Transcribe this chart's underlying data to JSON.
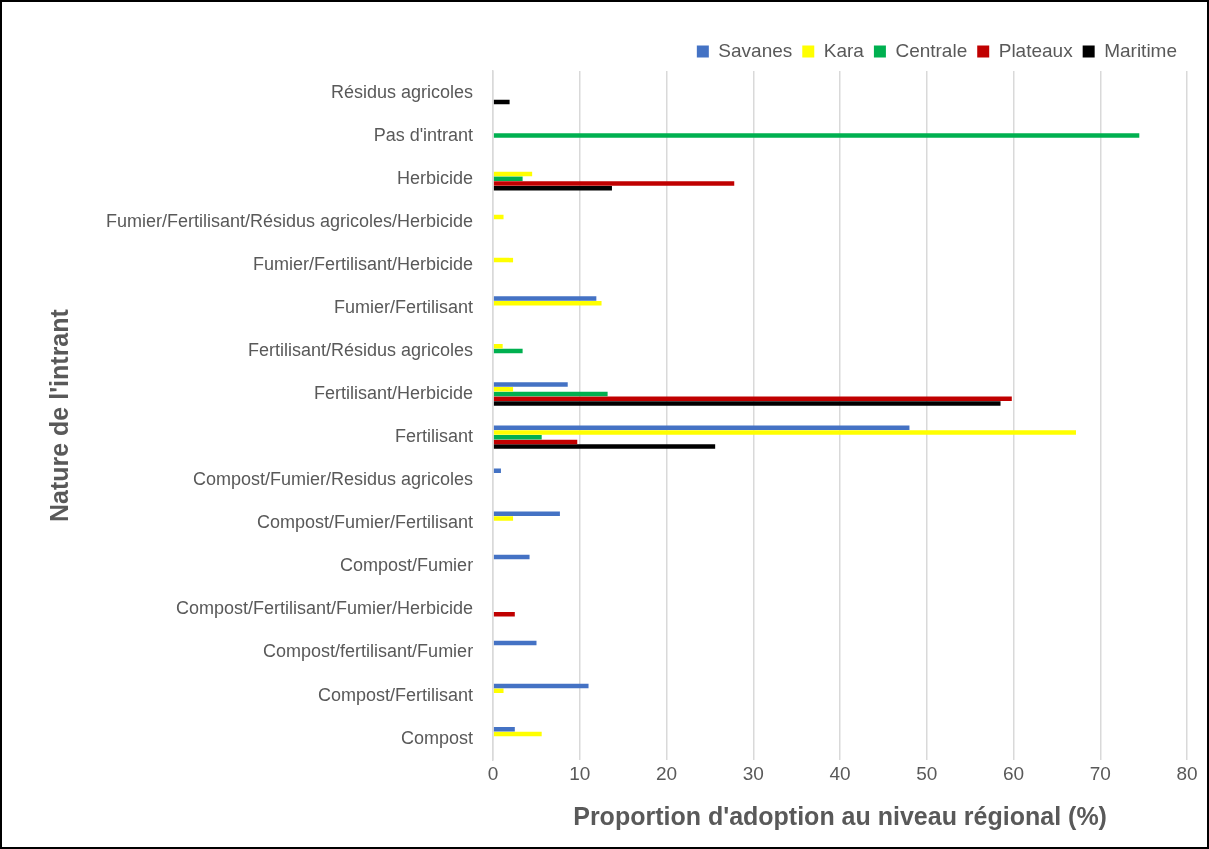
{
  "chart_data": {
    "type": "bar",
    "orientation": "horizontal",
    "xlabel": "Proportion d'adoption au niveau régional (%)",
    "ylabel": "Nature de l'intrant",
    "categories": [
      "Résidus agricoles",
      "Pas d'intrant",
      "Herbicide",
      "Fumier/Fertilisant/Résidus agricoles/Herbicide",
      "Fumier/Fertilisant/Herbicide",
      "Fumier/Fertilisant",
      "Fertilisant/Résidus agricoles",
      "Fertilisant/Herbicide",
      "Fertilisant",
      "Compost/Fumier/Residus agricoles",
      "Compost/Fumier/Fertilisant",
      "Compost/Fumier",
      "Compost/Fertilisant/Fumier/Herbicide",
      "Compost/fertilisant/Fumier",
      "Compost/Fertilisant",
      "Compost"
    ],
    "series": [
      {
        "name": "Savanes",
        "color": "#4472c4",
        "values": [
          null,
          null,
          null,
          null,
          null,
          11.9,
          null,
          8.6,
          48,
          0.9,
          7.7,
          4.2,
          null,
          5.0,
          11.0,
          2.5
        ]
      },
      {
        "name": "Kara",
        "color": "#ffff00",
        "values": [
          null,
          null,
          4.5,
          1.2,
          2.3,
          12.5,
          1.1,
          2.3,
          67.2,
          null,
          2.3,
          null,
          null,
          null,
          1.2,
          5.6
        ]
      },
      {
        "name": "Centrale",
        "color": "#00b050",
        "values": [
          null,
          74.5,
          3.4,
          null,
          null,
          null,
          3.4,
          13.2,
          5.6,
          null,
          null,
          null,
          null,
          null,
          null,
          null
        ]
      },
      {
        "name": "Plateaux",
        "color": "#c00000",
        "values": [
          null,
          null,
          27.8,
          null,
          null,
          null,
          null,
          59.8,
          9.7,
          null,
          null,
          null,
          2.5,
          null,
          null,
          null
        ]
      },
      {
        "name": "Maritime",
        "color": "#000000",
        "values": [
          1.9,
          null,
          13.7,
          null,
          null,
          null,
          null,
          58.5,
          25.6,
          null,
          null,
          null,
          null,
          null,
          null,
          null
        ]
      }
    ],
    "xlim": [
      0,
      80
    ],
    "xticks": [
      0,
      10,
      20,
      30,
      40,
      50,
      60,
      70,
      80
    ],
    "grid": "x",
    "legend": "top right"
  }
}
